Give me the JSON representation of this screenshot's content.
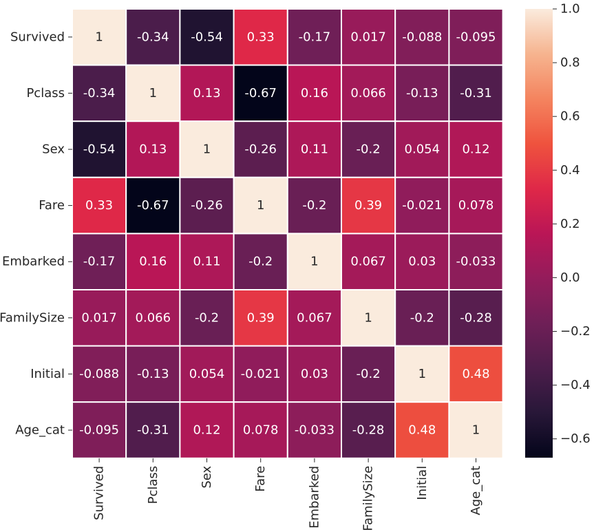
{
  "chart_data": {
    "type": "heatmap",
    "title": "",
    "rows": [
      "Survived",
      "Pclass",
      "Sex",
      "Fare",
      "Embarked",
      "FamilySize",
      "Initial",
      "Age_cat"
    ],
    "columns": [
      "Survived",
      "Pclass",
      "Sex",
      "Fare",
      "Embarked",
      "FamilySize",
      "Initial",
      "Age_cat"
    ],
    "values": [
      [
        1,
        -0.34,
        -0.54,
        0.33,
        -0.17,
        0.017,
        -0.088,
        -0.095
      ],
      [
        -0.34,
        1,
        0.13,
        -0.67,
        0.16,
        0.066,
        -0.13,
        -0.31
      ],
      [
        -0.54,
        0.13,
        1,
        -0.26,
        0.11,
        -0.2,
        0.054,
        0.12
      ],
      [
        0.33,
        -0.67,
        -0.26,
        1,
        -0.2,
        0.39,
        -0.021,
        0.078
      ],
      [
        -0.17,
        0.16,
        0.11,
        -0.2,
        1,
        0.067,
        0.03,
        -0.033
      ],
      [
        0.017,
        0.066,
        -0.2,
        0.39,
        0.067,
        1,
        -0.2,
        -0.28
      ],
      [
        -0.088,
        -0.13,
        0.054,
        -0.021,
        0.03,
        -0.2,
        1,
        0.48
      ],
      [
        -0.095,
        -0.31,
        0.12,
        0.078,
        -0.033,
        -0.28,
        0.48,
        1
      ]
    ],
    "labels": [
      [
        "1",
        "-0.34",
        "-0.54",
        "0.33",
        "-0.17",
        "0.017",
        "-0.088",
        "-0.095"
      ],
      [
        "-0.34",
        "1",
        "0.13",
        "-0.67",
        "0.16",
        "0.066",
        "-0.13",
        "-0.31"
      ],
      [
        "-0.54",
        "0.13",
        "1",
        "-0.26",
        "0.11",
        "-0.2",
        "0.054",
        "0.12"
      ],
      [
        "0.33",
        "-0.67",
        "-0.26",
        "1",
        "-0.2",
        "0.39",
        "-0.021",
        "0.078"
      ],
      [
        "-0.17",
        "0.16",
        "0.11",
        "-0.2",
        "1",
        "0.067",
        "0.03",
        "-0.033"
      ],
      [
        "0.017",
        "0.066",
        "-0.2",
        "0.39",
        "0.067",
        "1",
        "-0.2",
        "-0.28"
      ],
      [
        "-0.088",
        "-0.13",
        "0.054",
        "-0.021",
        "0.03",
        "-0.2",
        "1",
        "0.48"
      ],
      [
        "-0.095",
        "-0.31",
        "0.12",
        "0.078",
        "-0.033",
        "-0.28",
        "0.48",
        "1"
      ]
    ],
    "colormap": "rocket",
    "vmin": -0.67,
    "vmax": 1.0,
    "colorbar": {
      "ticks": [
        1.0,
        0.8,
        0.6,
        0.4,
        0.2,
        0.0,
        -0.2,
        -0.4,
        -0.6
      ],
      "tick_labels": [
        "1.0",
        "0.8",
        "0.6",
        "0.4",
        "0.2",
        "0.0",
        "−0.2",
        "−0.4",
        "−0.6"
      ]
    },
    "annotations": true,
    "linecolor": "#ffffff"
  }
}
